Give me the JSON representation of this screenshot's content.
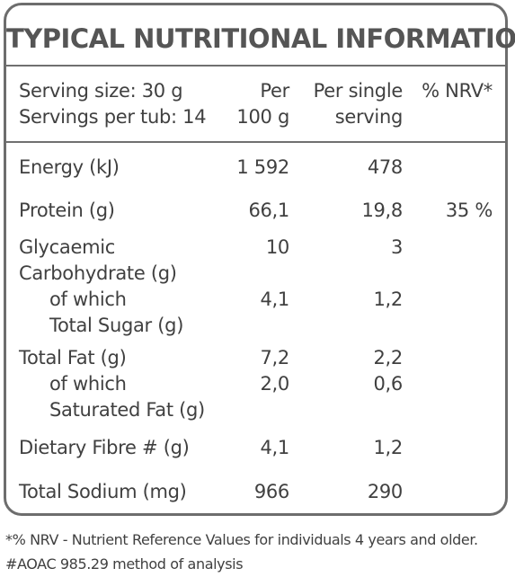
{
  "title": "TYPICAL NUTRITIONAL INFORMATION",
  "header": {
    "serving_size": "Serving size: 30 g",
    "servings_per_tub": "Servings per tub: 14",
    "per100_line1": "Per",
    "per100_line2": "100 g",
    "single_line1": "Per single",
    "single_line2": "serving",
    "nrv": "% NRV*"
  },
  "rows": {
    "energy": {
      "label": "Energy (kJ)",
      "per100": "1 592",
      "serving": "478"
    },
    "protein": {
      "label": "Protein (g)",
      "per100": "66,1",
      "serving": "19,8",
      "nrv": "35 %"
    },
    "glycaemic": {
      "label1": "Glycaemic",
      "label2": "Carbohydrate (g)",
      "per100": "10",
      "serving": "3"
    },
    "sugar": {
      "label1": "of which",
      "label2": "Total Sugar (g)",
      "per100": "4,1",
      "serving": "1,2"
    },
    "fat": {
      "label": "Total Fat (g)",
      "per100": "7,2",
      "serving": "2,2"
    },
    "satfat": {
      "label1": "of which",
      "label2": "Saturated Fat (g)",
      "per100": "2,0",
      "serving": "0,6"
    },
    "fibre": {
      "label": "Dietary Fibre # (g)",
      "per100": "4,1",
      "serving": "1,2"
    },
    "sodium": {
      "label": "Total Sodium (mg)",
      "per100": "966",
      "serving": "290"
    }
  },
  "footnotes": {
    "nrv": "*% NRV - Nutrient Reference Values for individuals 4 years and older.",
    "aoac": "#AOAC 985.29 method of analysis"
  }
}
